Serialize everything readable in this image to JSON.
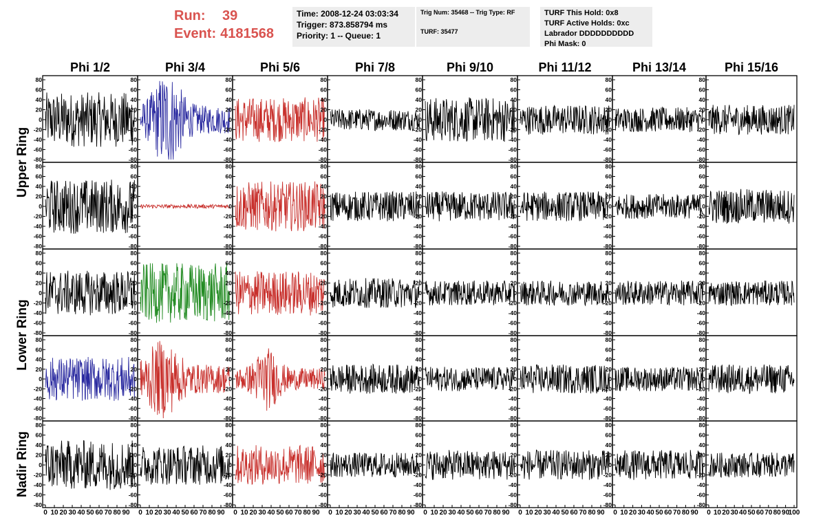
{
  "header": {
    "run_label": "Run:",
    "run_value": "39",
    "event_label": "Event:",
    "event_value": "4181568"
  },
  "info_box_1": {
    "time": "Time: 2008-12-24 03:03:34",
    "trigger": "Trigger: 873.858794 ms",
    "priority": "Priority: 1 -- Queue: 1"
  },
  "info_box_2": {
    "trig": "Trig Num: 35468 -- Trig Type: RF",
    "turf": "TURF: 35477"
  },
  "info_box_3": {
    "hold": "TURF This Hold: 0x8",
    "active": "TURF Active Holds: 0xc",
    "labrador": "Labrador DDDDDDDDDD",
    "phimask": "Phi Mask: 0"
  },
  "colors": {
    "black": "#000000",
    "blue": "#2b2ba0",
    "red": "#c8302c",
    "green": "#228b22",
    "title_red": "#d9534f"
  },
  "chart_data": {
    "type": "line",
    "columns": [
      "Phi 1/2",
      "Phi 3/4",
      "Phi 5/6",
      "Phi 7/8",
      "Phi 9/10",
      "Phi 11/12",
      "Phi 13/14",
      "Phi 15/16"
    ],
    "rings": [
      "Upper Ring",
      "Lower Ring",
      "Nadir Ring"
    ],
    "xlim": [
      0,
      100
    ],
    "ylim": [
      -80,
      80
    ],
    "y_ticks": [
      -80,
      -60,
      -40,
      -20,
      0,
      20,
      40,
      60,
      80
    ],
    "x_tick_labels": [
      "0",
      "10",
      "20",
      "30",
      "40",
      "50",
      "60",
      "70",
      "80",
      "90",
      "100"
    ],
    "panels": [
      [
        {
          "color": "black",
          "amp": 55
        },
        {
          "color": "blue",
          "amp": 80
        },
        {
          "color": "red",
          "amp": 45
        },
        {
          "color": "black",
          "amp": 22
        },
        {
          "color": "black",
          "amp": 45
        },
        {
          "color": "black",
          "amp": 30
        },
        {
          "color": "black",
          "amp": 25
        },
        {
          "color": "black",
          "amp": 30
        }
      ],
      [
        {
          "color": "black",
          "amp": 55
        },
        {
          "color": "red",
          "amp": 4
        },
        {
          "color": "red",
          "amp": 50
        },
        {
          "color": "black",
          "amp": 30
        },
        {
          "color": "black",
          "amp": 30
        },
        {
          "color": "black",
          "amp": 30
        },
        {
          "color": "black",
          "amp": 25
        },
        {
          "color": "black",
          "amp": 35
        }
      ],
      [
        {
          "color": "black",
          "amp": 45
        },
        {
          "color": "green",
          "amp": 60
        },
        {
          "color": "red",
          "amp": 45
        },
        {
          "color": "black",
          "amp": 30
        },
        {
          "color": "black",
          "amp": 25
        },
        {
          "color": "black",
          "amp": 25
        },
        {
          "color": "black",
          "amp": 25
        },
        {
          "color": "black",
          "amp": 25
        }
      ],
      [
        {
          "color": "blue",
          "amp": 45
        },
        {
          "color": "red",
          "amp": 65
        },
        {
          "color": "red",
          "amp": 55
        },
        {
          "color": "black",
          "amp": 30
        },
        {
          "color": "black",
          "amp": 25
        },
        {
          "color": "black",
          "amp": 30
        },
        {
          "color": "black",
          "amp": 25
        },
        {
          "color": "black",
          "amp": 30
        }
      ],
      [
        {
          "color": "black",
          "amp": 50
        },
        {
          "color": "black",
          "amp": 40
        },
        {
          "color": "red",
          "amp": 40
        },
        {
          "color": "black",
          "amp": 25
        },
        {
          "color": "black",
          "amp": 30
        },
        {
          "color": "black",
          "amp": 30
        },
        {
          "color": "black",
          "amp": 30
        },
        {
          "color": "black",
          "amp": 25
        }
      ]
    ]
  }
}
